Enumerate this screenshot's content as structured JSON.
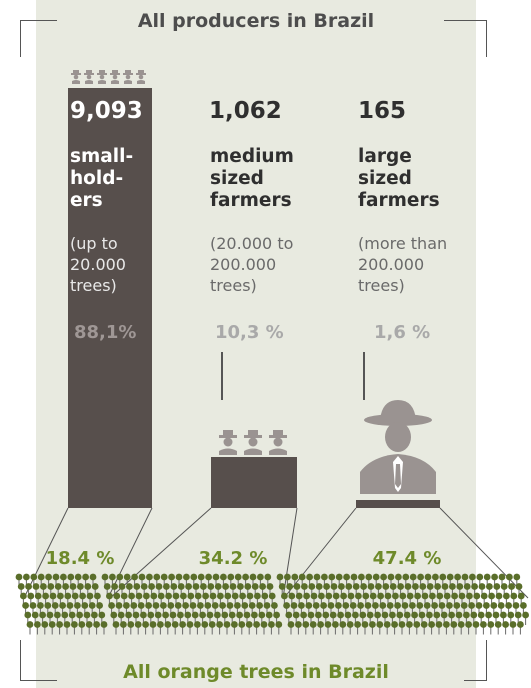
{
  "title_top": "All producers in Brazil",
  "title_bottom": "All orange trees in Brazil",
  "colors": {
    "bar": "#574f4c",
    "panel": "#e8eae0",
    "accent_green": "#6e8a2a",
    "icon_gray": "#9a9391",
    "tree_green": "#5a6e2a"
  },
  "groups": [
    {
      "count": "9,093",
      "category": "small-\nhold-\ners",
      "range": "(up to\n20.000\ntrees)",
      "share_producers": "88,1%",
      "share_trees": "18.4 %"
    },
    {
      "count": "1,062",
      "category": "medium\nsized\nfarmers",
      "range": "(20.000 to\n200.000\ntrees)",
      "share_producers": "10,3 %",
      "share_trees": "34.2 %"
    },
    {
      "count": "165",
      "category": "large\nsized\nfarmers",
      "range": "(more than\n200.000\ntrees)",
      "share_producers": "1,6 %",
      "share_trees": "47.4 %"
    }
  ]
}
